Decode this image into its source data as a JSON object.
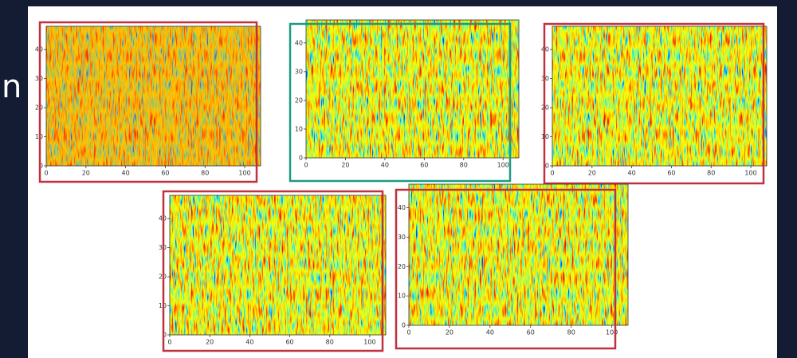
{
  "slide_text": "n",
  "panels": [
    {
      "xlim": [
        0,
        108
      ],
      "ylim": [
        0,
        48
      ],
      "xticks": [
        0,
        20,
        40,
        60,
        80,
        100
      ],
      "yticks": [
        0,
        10,
        20,
        30,
        40
      ]
    },
    {
      "xlim": [
        0,
        108
      ],
      "ylim": [
        0,
        48
      ],
      "xticks": [
        0,
        20,
        40,
        60,
        80,
        100
      ],
      "yticks": [
        0,
        10,
        20,
        30,
        40
      ]
    },
    {
      "xlim": [
        0,
        108
      ],
      "ylim": [
        0,
        48
      ],
      "xticks": [
        0,
        20,
        40,
        60,
        80,
        100
      ],
      "yticks": [
        0,
        10,
        20,
        30,
        40
      ]
    },
    {
      "xlim": [
        0,
        108
      ],
      "ylim": [
        0,
        48
      ],
      "xticks": [
        0,
        20,
        40,
        60,
        80,
        100
      ],
      "yticks": [
        0,
        10,
        20,
        30,
        40
      ]
    },
    {
      "xlim": [
        0,
        108
      ],
      "ylim": [
        0,
        48
      ],
      "xticks": [
        0,
        20,
        40,
        60,
        80,
        100
      ],
      "yticks": [
        0,
        10,
        20,
        30,
        40
      ]
    }
  ]
}
